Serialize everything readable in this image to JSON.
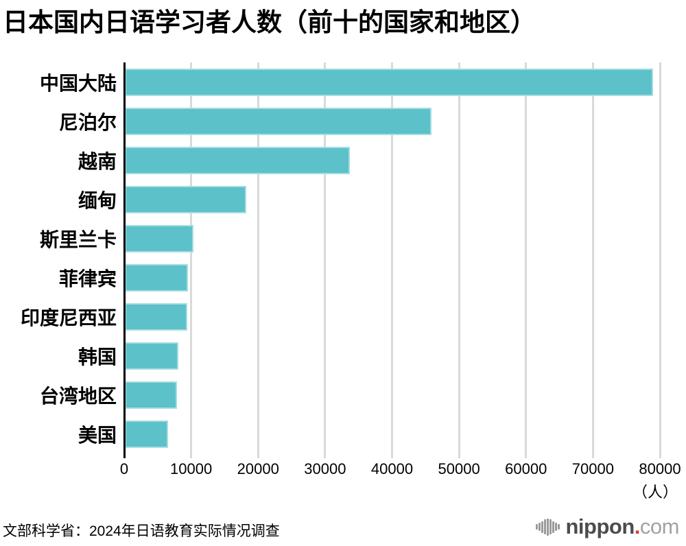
{
  "title": "日本国内日语学习者人数（前十的国家和地区）",
  "source": "文部科学省：2024年日语教育实际情况调查",
  "chart_data": {
    "type": "bar",
    "orientation": "horizontal",
    "title": "日本国内日语学习者人数（前十的国家和地区）",
    "categories": [
      "中国大陆",
      "尼泊尔",
      "越南",
      "缅甸",
      "斯里兰卡",
      "菲律宾",
      "印度尼西亚",
      "韩国",
      "台湾地区",
      "美国"
    ],
    "values": [
      78900,
      45800,
      33600,
      18100,
      10200,
      9400,
      9300,
      8000,
      7800,
      6500
    ],
    "xticks": [
      0,
      10000,
      20000,
      30000,
      40000,
      50000,
      60000,
      70000,
      80000
    ],
    "xtick_labels": [
      "0",
      "10000",
      "20000",
      "30000",
      "40000",
      "50000",
      "60000",
      "70000",
      "80000"
    ],
    "xlim": [
      0,
      82000
    ],
    "unit_label": "（人）",
    "xlabel": "",
    "ylabel": "",
    "grid": "vertical",
    "legend": "none",
    "bar_color": "#5cc1c9",
    "grid_color": "#d9d9d9",
    "axis_color": "#000000"
  },
  "logo": {
    "icon": "soundwave-bars-icon",
    "name": "nippon",
    "dot": ".",
    "tld": "com",
    "dot_color": "#e83828"
  }
}
